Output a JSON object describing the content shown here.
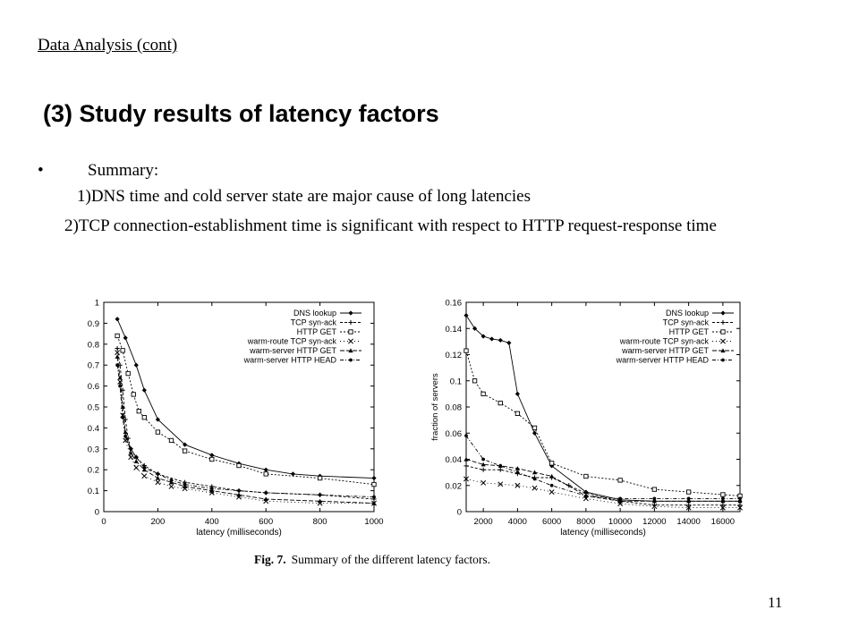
{
  "slide": {
    "heading": "Data Analysis (cont)",
    "title": "(3) Study results of latency factors",
    "bullet_glyph": "•",
    "summary_label": "Summary:",
    "point1": "1)DNS time and cold server state are major cause of long latencies",
    "point2": "2)TCP connection-establishment time is significant with respect to HTTP request-response time",
    "caption_label": "Fig. 7.",
    "caption_text": "Summary of the different latency factors.",
    "page_number": "11"
  },
  "chart_data": [
    {
      "type": "line",
      "xlabel": "latency (milliseconds)",
      "ylabel": "",
      "xlim": [
        0,
        1000
      ],
      "ylim": [
        0,
        1
      ],
      "x_ticks": [
        "0",
        "200",
        "400",
        "600",
        "800",
        "1000"
      ],
      "y_ticks": [
        "0",
        "0.1",
        "0.2",
        "0.3",
        "0.4",
        "0.5",
        "0.6",
        "0.7",
        "0.8",
        "0.9",
        "1"
      ],
      "grid": false,
      "legend_position": "top-right",
      "series": [
        {
          "name": "DNS lookup",
          "marker": "diamond",
          "dash": "",
          "x": [
            50,
            80,
            120,
            150,
            200,
            300,
            400,
            500,
            600,
            700,
            800,
            1000
          ],
          "y": [
            0.92,
            0.83,
            0.7,
            0.58,
            0.44,
            0.32,
            0.27,
            0.23,
            0.2,
            0.18,
            0.17,
            0.16
          ]
        },
        {
          "name": "TCP syn-ack",
          "marker": "plus",
          "dash": "3,2",
          "x": [
            50,
            60,
            70,
            80,
            90,
            100,
            120,
            150,
            200,
            300,
            400,
            500,
            600,
            800,
            1000
          ],
          "y": [
            0.78,
            0.7,
            0.58,
            0.44,
            0.35,
            0.3,
            0.26,
            0.22,
            0.18,
            0.14,
            0.12,
            0.1,
            0.09,
            0.08,
            0.06
          ]
        },
        {
          "name": "HTTP GET",
          "marker": "square",
          "dash": "2,2",
          "x": [
            50,
            70,
            90,
            110,
            130,
            150,
            200,
            250,
            300,
            400,
            500,
            600,
            800,
            1000
          ],
          "y": [
            0.84,
            0.77,
            0.66,
            0.56,
            0.48,
            0.45,
            0.38,
            0.34,
            0.29,
            0.25,
            0.22,
            0.18,
            0.16,
            0.13
          ]
        },
        {
          "name": "warm-route TCP syn-ack",
          "marker": "cross",
          "dash": "1,3",
          "x": [
            50,
            60,
            70,
            80,
            100,
            120,
            150,
            200,
            250,
            300,
            400,
            500,
            600,
            800,
            1000
          ],
          "y": [
            0.76,
            0.62,
            0.46,
            0.34,
            0.26,
            0.21,
            0.17,
            0.14,
            0.12,
            0.11,
            0.09,
            0.07,
            0.05,
            0.04,
            0.04
          ]
        },
        {
          "name": "warm-server HTTP GET",
          "marker": "triangle",
          "dash": "5,2",
          "x": [
            50,
            60,
            70,
            80,
            100,
            120,
            150,
            200,
            250,
            300,
            400,
            500,
            600,
            800,
            1000
          ],
          "y": [
            0.74,
            0.64,
            0.5,
            0.38,
            0.28,
            0.24,
            0.2,
            0.16,
            0.14,
            0.12,
            0.1,
            0.08,
            0.06,
            0.05,
            0.04
          ]
        },
        {
          "name": "warm-server HTTP HEAD",
          "marker": "dot",
          "dash": "4,2,1,2",
          "x": [
            50,
            60,
            70,
            80,
            100,
            120,
            150,
            200,
            250,
            300,
            400,
            500,
            600,
            800,
            1000
          ],
          "y": [
            0.7,
            0.6,
            0.45,
            0.36,
            0.3,
            0.26,
            0.21,
            0.18,
            0.15,
            0.13,
            0.11,
            0.1,
            0.09,
            0.08,
            0.07
          ]
        }
      ]
    },
    {
      "type": "line",
      "xlabel": "latency (milliseconds)",
      "ylabel": "fraction of servers",
      "xlim": [
        1000,
        17000
      ],
      "ylim": [
        0,
        0.16
      ],
      "x_ticks": [
        "2000",
        "4000",
        "6000",
        "8000",
        "10000",
        "12000",
        "14000",
        "16000"
      ],
      "y_ticks": [
        "0",
        "0.02",
        "0.04",
        "0.06",
        "0.08",
        "0.1",
        "0.12",
        "0.14",
        "0.16"
      ],
      "grid": false,
      "legend_position": "top-right",
      "series": [
        {
          "name": "DNS lookup",
          "marker": "diamond",
          "dash": "",
          "x": [
            1000,
            1500,
            2000,
            2500,
            3000,
            3500,
            4000,
            5000,
            6000,
            8000,
            10000,
            12000,
            14000,
            16000,
            17000
          ],
          "y": [
            0.15,
            0.14,
            0.134,
            0.132,
            0.131,
            0.129,
            0.09,
            0.06,
            0.035,
            0.015,
            0.009,
            0.008,
            0.008,
            0.008,
            0.008
          ]
        },
        {
          "name": "TCP syn-ack",
          "marker": "plus",
          "dash": "3,2",
          "x": [
            1000,
            2000,
            3000,
            4000,
            5000,
            6000,
            7000,
            8000,
            10000,
            12000,
            14000,
            16000,
            17000
          ],
          "y": [
            0.035,
            0.032,
            0.032,
            0.029,
            0.026,
            0.026,
            0.02,
            0.014,
            0.008,
            0.005,
            0.005,
            0.005,
            0.005
          ]
        },
        {
          "name": "HTTP GET",
          "marker": "square",
          "dash": "2,2",
          "x": [
            1000,
            1500,
            2000,
            3000,
            4000,
            5000,
            6000,
            8000,
            10000,
            12000,
            14000,
            16000,
            17000
          ],
          "y": [
            0.123,
            0.1,
            0.09,
            0.083,
            0.075,
            0.064,
            0.037,
            0.027,
            0.024,
            0.017,
            0.015,
            0.013,
            0.012
          ]
        },
        {
          "name": "warm-route TCP syn-ack",
          "marker": "cross",
          "dash": "1,3",
          "x": [
            1000,
            2000,
            3000,
            4000,
            5000,
            6000,
            8000,
            10000,
            12000,
            14000,
            16000,
            17000
          ],
          "y": [
            0.025,
            0.022,
            0.021,
            0.02,
            0.018,
            0.015,
            0.01,
            0.006,
            0.004,
            0.003,
            0.003,
            0.003
          ]
        },
        {
          "name": "warm-server HTTP GET",
          "marker": "triangle",
          "dash": "5,2",
          "x": [
            1000,
            2000,
            3000,
            4000,
            5000,
            6000,
            8000,
            10000,
            12000,
            14000,
            16000,
            17000
          ],
          "y": [
            0.04,
            0.036,
            0.035,
            0.033,
            0.03,
            0.027,
            0.012,
            0.008,
            0.008,
            0.008,
            0.008,
            0.008
          ]
        },
        {
          "name": "warm-server HTTP HEAD",
          "marker": "dot",
          "dash": "4,2,1,2",
          "x": [
            1000,
            2000,
            3000,
            4000,
            5000,
            6000,
            8000,
            10000,
            12000,
            14000,
            16000,
            17000
          ],
          "y": [
            0.058,
            0.04,
            0.035,
            0.03,
            0.025,
            0.02,
            0.012,
            0.01,
            0.01,
            0.01,
            0.01,
            0.01
          ]
        }
      ]
    }
  ]
}
